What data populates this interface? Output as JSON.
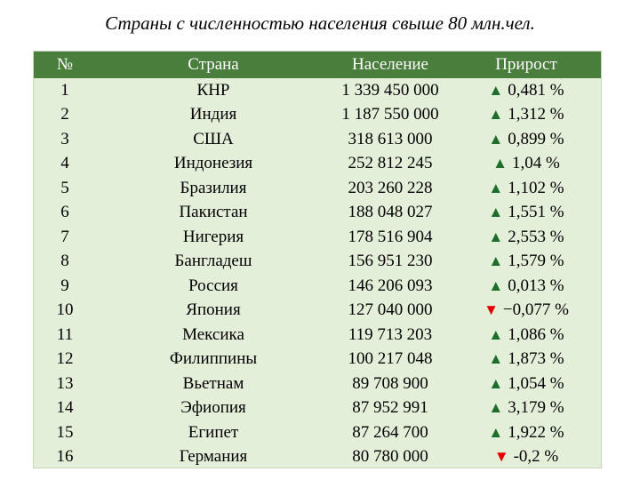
{
  "title": "Страны с численностью населения свыше 80 млн.чел.",
  "colors": {
    "header_bg": "#4a7e3c",
    "header_text": "#ffffff",
    "table_bg": "#e4efd9",
    "up_arrow": "#1c6f2a",
    "down_arrow": "#e20000"
  },
  "table": {
    "headers": [
      "№",
      "Страна",
      "Население",
      "Прирост"
    ],
    "rows": [
      {
        "num": "1",
        "country": "КНР",
        "population": "1 339 450 000",
        "trend": "up",
        "arrow": "▲",
        "growth": "0,481 %"
      },
      {
        "num": "2",
        "country": "Индия",
        "population": "1 187 550 000",
        "trend": "up",
        "arrow": "▲",
        "growth": "1,312 %"
      },
      {
        "num": "3",
        "country": "США",
        "population": "318 613 000",
        "trend": "up",
        "arrow": "▲",
        "growth": "0,899 %"
      },
      {
        "num": "4",
        "country": "Индонезия",
        "population": "252 812 245",
        "trend": "up",
        "arrow": "▲",
        "growth": "1,04 %"
      },
      {
        "num": "5",
        "country": "Бразилия",
        "population": "203 260 228",
        "trend": "up",
        "arrow": "▲",
        "growth": "1,102 %"
      },
      {
        "num": "6",
        "country": "Пакистан",
        "population": "188 048 027",
        "trend": "up",
        "arrow": "▲",
        "growth": "1,551 %"
      },
      {
        "num": "7",
        "country": "Нигерия",
        "population": "178 516 904",
        "trend": "up",
        "arrow": "▲",
        "growth": "2,553 %"
      },
      {
        "num": "8",
        "country": "Бангладеш",
        "population": "156 951 230",
        "trend": "up",
        "arrow": "▲",
        "growth": "1,579 %"
      },
      {
        "num": "9",
        "country": "Россия",
        "population": "146 206 093",
        "trend": "up",
        "arrow": "▲",
        "growth": "0,013 %"
      },
      {
        "num": "10",
        "country": "Япония",
        "population": "127 040 000",
        "trend": "down",
        "arrow": "▼",
        "growth": "−0,077 %"
      },
      {
        "num": "11",
        "country": "Мексика",
        "population": "119 713 203",
        "trend": "up",
        "arrow": "▲",
        "growth": "1,086 %"
      },
      {
        "num": "12",
        "country": "Филиппины",
        "population": "100 217 048",
        "trend": "up",
        "arrow": "▲",
        "growth": "1,873 %"
      },
      {
        "num": "13",
        "country": "Вьетнам",
        "population": "89 708 900",
        "trend": "up",
        "arrow": "▲",
        "growth": "1,054 %"
      },
      {
        "num": "14",
        "country": "Эфиопия",
        "population": "87 952 991",
        "trend": "up",
        "arrow": "▲",
        "growth": "3,179 %"
      },
      {
        "num": "15",
        "country": "Египет",
        "population": "87 264 700",
        "trend": "up",
        "arrow": "▲",
        "growth": "1,922 %"
      },
      {
        "num": "16",
        "country": "Германия",
        "population": "80 780 000",
        "trend": "down",
        "arrow": "▼",
        "growth": "-0,2 %"
      }
    ]
  }
}
